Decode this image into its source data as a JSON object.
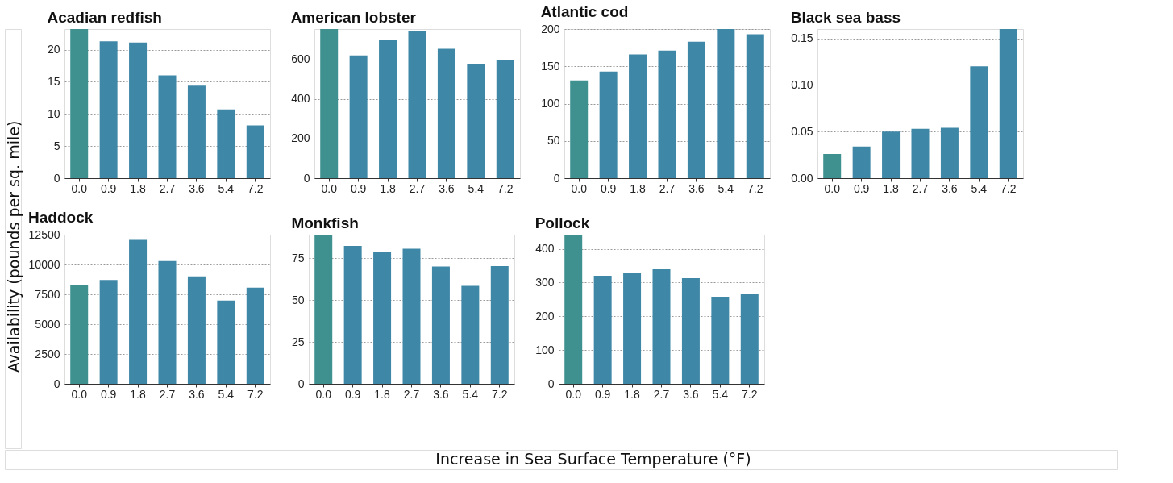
{
  "chart_data": [
    {
      "type": "bar",
      "title": "Acadian redfish",
      "ylabel": "Availability (pounds per sq. mile)",
      "categories": [
        "0.0",
        "0.9",
        "1.8",
        "2.7",
        "3.6",
        "5.4",
        "7.2"
      ],
      "values": [
        23.2,
        21.3,
        21.1,
        16.0,
        14.4,
        10.7,
        8.2
      ],
      "colors": [
        "#3f918f",
        "#3e87a6",
        "#3e87a6",
        "#3e87a6",
        "#3e87a6",
        "#3e87a6",
        "#3e87a6"
      ],
      "ylim": [
        0,
        23.2
      ],
      "yticks": [
        0,
        5,
        10,
        15,
        20
      ],
      "grid": "y"
    },
    {
      "type": "bar",
      "title": "American lobster",
      "categories": [
        "0.0",
        "0.9",
        "1.8",
        "2.7",
        "3.6",
        "5.4",
        "7.2"
      ],
      "values": [
        753,
        620,
        700,
        742,
        653,
        578,
        596
      ],
      "colors": [
        "#3f918f",
        "#3e87a6",
        "#3e87a6",
        "#3e87a6",
        "#3e87a6",
        "#3e87a6",
        "#3e87a6"
      ],
      "ylim": [
        0,
        753
      ],
      "yticks": [
        0,
        200,
        400,
        600
      ],
      "grid": "y"
    },
    {
      "type": "bar",
      "title": "Atlantic cod",
      "categories": [
        "0.0",
        "0.9",
        "1.8",
        "2.7",
        "3.6",
        "5.4",
        "7.2"
      ],
      "values": [
        131,
        143,
        166,
        171,
        183,
        200,
        193
      ],
      "colors": [
        "#3f918f",
        "#3e87a6",
        "#3e87a6",
        "#3e87a6",
        "#3e87a6",
        "#3e87a6",
        "#3e87a6"
      ],
      "ylim": [
        0,
        200
      ],
      "yticks": [
        0,
        50,
        100,
        150,
        200
      ],
      "grid": "y"
    },
    {
      "type": "bar",
      "title": "Black sea bass",
      "categories": [
        "0.0",
        "0.9",
        "1.8",
        "2.7",
        "3.6",
        "5.4",
        "7.2"
      ],
      "values": [
        0.026,
        0.034,
        0.05,
        0.053,
        0.054,
        0.12,
        0.16
      ],
      "colors": [
        "#3f918f",
        "#3e87a6",
        "#3e87a6",
        "#3e87a6",
        "#3e87a6",
        "#3e87a6",
        "#3e87a6"
      ],
      "ylim": [
        0,
        0.16
      ],
      "yticks": [
        {
          "value": 0,
          "label": "0.00"
        },
        0.05,
        {
          "value": 0.1,
          "label": "0.10"
        },
        0.15
      ],
      "grid": "y"
    },
    {
      "type": "bar",
      "title": "Haddock",
      "categories": [
        "0.0",
        "0.9",
        "1.8",
        "2.7",
        "3.6",
        "5.4",
        "7.2"
      ],
      "values": [
        8270,
        8700,
        12060,
        10280,
        9000,
        6980,
        8060
      ],
      "colors": [
        "#3f918f",
        "#3e87a6",
        "#3e87a6",
        "#3e87a6",
        "#3e87a6",
        "#3e87a6",
        "#3e87a6"
      ],
      "ylim": [
        0,
        12500
      ],
      "yticks": [
        0,
        2500,
        5000,
        7500,
        10000,
        12500
      ],
      "grid": "y"
    },
    {
      "type": "bar",
      "title": "Monkfish",
      "xlabel": "Increase in Sea Surface Temperature (°F)",
      "categories": [
        "0.0",
        "0.9",
        "1.8",
        "2.7",
        "3.6",
        "5.4",
        "7.2"
      ],
      "values": [
        89.2,
        82.5,
        78.9,
        80.8,
        70.2,
        58.6,
        70.4
      ],
      "colors": [
        "#3f918f",
        "#3e87a6",
        "#3e87a6",
        "#3e87a6",
        "#3e87a6",
        "#3e87a6",
        "#3e87a6"
      ],
      "ylim": [
        0,
        89.2
      ],
      "yticks": [
        0,
        25,
        50,
        75
      ],
      "grid": "y"
    },
    {
      "type": "bar",
      "title": "Pollock",
      "categories": [
        "0.0",
        "0.9",
        "1.8",
        "2.7",
        "3.6",
        "5.4",
        "7.2"
      ],
      "values": [
        442,
        320,
        330,
        341,
        313,
        258,
        266
      ],
      "colors": [
        "#3f918f",
        "#3e87a6",
        "#3e87a6",
        "#3e87a6",
        "#3e87a6",
        "#3e87a6",
        "#3e87a6"
      ],
      "ylim": [
        0,
        442
      ],
      "yticks": [
        0,
        100,
        200,
        300,
        400
      ],
      "grid": "y"
    }
  ]
}
